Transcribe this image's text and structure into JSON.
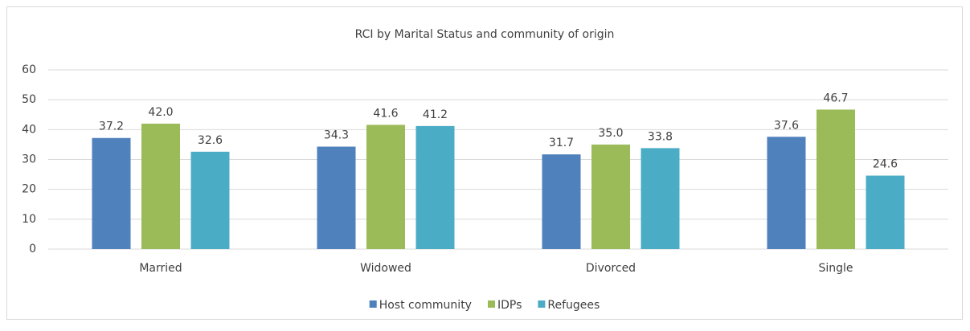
{
  "chart_data": {
    "type": "bar",
    "title": "RCI by Marital Status and community of origin",
    "categories": [
      "Married",
      "Widowed",
      "Divorced",
      "Single"
    ],
    "series": [
      {
        "name": "Host community",
        "color": "#4f81bd",
        "values": [
          37.2,
          34.3,
          31.7,
          37.6
        ],
        "value_labels": [
          "37.2",
          "34.3",
          "31.7",
          "37.6"
        ]
      },
      {
        "name": "IDPs",
        "color": "#9bbb59",
        "values": [
          42.0,
          41.6,
          35.0,
          46.7
        ],
        "value_labels": [
          "42.0",
          "41.6",
          "35.0",
          "46.7"
        ]
      },
      {
        "name": "Refugees",
        "color": "#4bacc6",
        "values": [
          32.6,
          41.2,
          33.8,
          24.6
        ],
        "value_labels": [
          "32.6",
          "41.2",
          "33.8",
          "24.6"
        ]
      }
    ],
    "ylim": [
      0,
      60
    ],
    "yticks": [
      0,
      10,
      20,
      30,
      40,
      50,
      60
    ],
    "grid": true,
    "legend": "bottom"
  }
}
